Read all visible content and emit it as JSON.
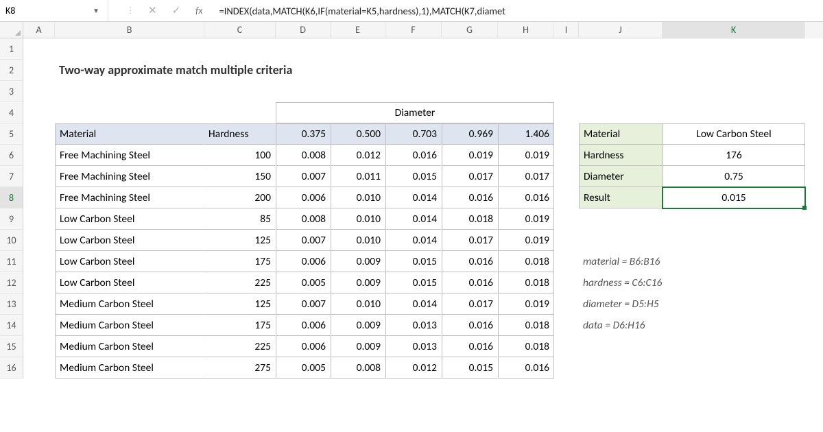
{
  "formula_bar": {
    "name_box": "K8",
    "formula": "=INDEX(data,MATCH(K6,IF(material=K5,hardness),1),MATCH(K7,diamet"
  },
  "columns": {
    "labels": [
      "A",
      "B",
      "C",
      "D",
      "E",
      "F",
      "G",
      "H",
      "I",
      "J",
      "K"
    ],
    "widths": [
      46,
      218,
      104,
      80,
      80,
      82,
      82,
      82,
      36,
      122,
      208
    ],
    "selected": "K"
  },
  "row_labels": [
    "1",
    "2",
    "3",
    "4",
    "5",
    "6",
    "7",
    "8",
    "9",
    "10",
    "11",
    "12",
    "13",
    "14",
    "15",
    "16"
  ],
  "row_selected": "8",
  "title": "Two-way approximate match multiple criteria",
  "table": {
    "diameter_label": "Diameter",
    "headers": {
      "material": "Material",
      "hardness": "Hardness"
    },
    "diam_cols": [
      "0.375",
      "0.500",
      "0.703",
      "0.969",
      "1.406"
    ],
    "rows": [
      {
        "mat": "Free Machining Steel",
        "hard": "100",
        "v": [
          "0.008",
          "0.012",
          "0.016",
          "0.019",
          "0.019"
        ]
      },
      {
        "mat": "Free Machining Steel",
        "hard": "150",
        "v": [
          "0.007",
          "0.011",
          "0.015",
          "0.017",
          "0.017"
        ]
      },
      {
        "mat": "Free Machining Steel",
        "hard": "200",
        "v": [
          "0.006",
          "0.010",
          "0.014",
          "0.016",
          "0.016"
        ]
      },
      {
        "mat": "Low Carbon Steel",
        "hard": "85",
        "v": [
          "0.008",
          "0.010",
          "0.014",
          "0.018",
          "0.019"
        ]
      },
      {
        "mat": "Low Carbon Steel",
        "hard": "125",
        "v": [
          "0.007",
          "0.010",
          "0.014",
          "0.017",
          "0.019"
        ]
      },
      {
        "mat": "Low Carbon Steel",
        "hard": "175",
        "v": [
          "0.006",
          "0.009",
          "0.015",
          "0.016",
          "0.018"
        ]
      },
      {
        "mat": "Low Carbon Steel",
        "hard": "225",
        "v": [
          "0.005",
          "0.009",
          "0.015",
          "0.016",
          "0.018"
        ]
      },
      {
        "mat": "Medium Carbon Steel",
        "hard": "125",
        "v": [
          "0.007",
          "0.010",
          "0.014",
          "0.017",
          "0.019"
        ]
      },
      {
        "mat": "Medium Carbon Steel",
        "hard": "175",
        "v": [
          "0.006",
          "0.009",
          "0.013",
          "0.016",
          "0.018"
        ]
      },
      {
        "mat": "Medium Carbon Steel",
        "hard": "225",
        "v": [
          "0.006",
          "0.009",
          "0.013",
          "0.016",
          "0.018"
        ]
      },
      {
        "mat": "Medium Carbon Steel",
        "hard": "275",
        "v": [
          "0.005",
          "0.008",
          "0.012",
          "0.015",
          "0.016"
        ]
      }
    ]
  },
  "lookup": {
    "labels": {
      "material": "Material",
      "hardness": "Hardness",
      "diameter": "Diameter",
      "result": "Result"
    },
    "values": {
      "material": "Low Carbon Steel",
      "hardness": "176",
      "diameter": "0.75",
      "result": "0.015"
    }
  },
  "named_ranges": [
    "material = B6:B16",
    "hardness = C6:C16",
    "diameter = D5:H5",
    "data = D6:H16"
  ],
  "colors": {
    "grid_border": "#bfbfbf",
    "header_fill": "#dfe5f0",
    "lookup_header_fill": "#e7f0da",
    "selection": "#1b7a3a"
  }
}
